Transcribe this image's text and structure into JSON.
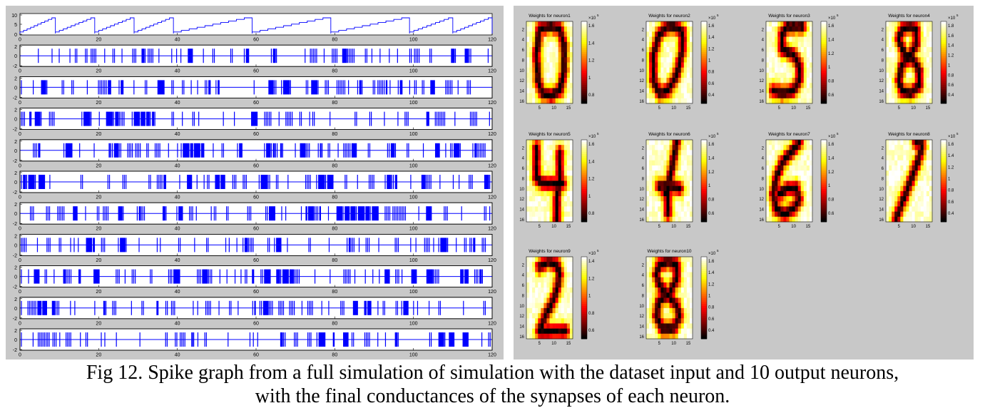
{
  "caption": {
    "line1": "Fig 12. Spike graph from a full simulation of simulation with the dataset input and 10 output neurons,",
    "line2": "with the final conductances of the synapses of each neuron."
  },
  "chart_data": [
    {
      "type": "line",
      "title": "",
      "panels": [
        {
          "name": "input-index",
          "ylim": [
            0,
            10
          ],
          "yticks": [
            "10",
            "5",
            "0"
          ],
          "xlim": [
            0,
            120
          ],
          "xticks": [
            "0",
            "20",
            "40",
            "60",
            "80",
            "100",
            "120"
          ],
          "series": [
            {
              "color": "#0000ff",
              "segments": [
                [
                  0,
                  9
                ],
                [
                  9,
                  19
                ],
                [
                  19,
                  29
                ],
                [
                  29,
                  39
                ],
                [
                  39,
                  59
                ],
                [
                  59,
                  79
                ],
                [
                  79,
                  99
                ],
                [
                  99,
                  110
                ],
                [
                  110,
                  120
                ]
              ]
            }
          ]
        },
        {
          "name": "spike-raster-1",
          "ylim": [
            -2,
            2
          ],
          "yticks": [
            "2",
            "0",
            "-2"
          ]
        },
        {
          "name": "spike-raster-2",
          "ylim": [
            -2,
            2
          ],
          "yticks": [
            "2",
            "0",
            "-2"
          ]
        },
        {
          "name": "spike-raster-3",
          "ylim": [
            -2,
            2
          ],
          "yticks": [
            "2",
            "0",
            "-2"
          ]
        },
        {
          "name": "spike-raster-4",
          "ylim": [
            -2,
            2
          ],
          "yticks": [
            "2",
            "0",
            "-2"
          ]
        },
        {
          "name": "spike-raster-5",
          "ylim": [
            -2,
            2
          ],
          "yticks": [
            "2",
            "0",
            "-2"
          ]
        },
        {
          "name": "spike-raster-6",
          "ylim": [
            -2,
            2
          ],
          "yticks": [
            "2",
            "0",
            "-2"
          ]
        },
        {
          "name": "spike-raster-7",
          "ylim": [
            -2,
            2
          ],
          "yticks": [
            "2",
            "0",
            "-2"
          ]
        },
        {
          "name": "spike-raster-8",
          "ylim": [
            -2,
            2
          ],
          "yticks": [
            "2",
            "0",
            "-2"
          ]
        },
        {
          "name": "spike-raster-9",
          "ylim": [
            -2,
            2
          ],
          "yticks": [
            "2",
            "0",
            "-2"
          ]
        },
        {
          "name": "spike-raster-10",
          "ylim": [
            -2,
            2
          ],
          "yticks": [
            "2",
            "0",
            "-2"
          ]
        }
      ],
      "xticks": [
        "0",
        "20",
        "40",
        "60",
        "80",
        "100",
        "120"
      ],
      "series_color": "#0000ff"
    },
    {
      "type": "heatmap",
      "colormap": "hot",
      "xticks": [
        "5",
        "10",
        "15"
      ],
      "yticks": [
        "2",
        "4",
        "6",
        "8",
        "10",
        "12",
        "14",
        "16"
      ],
      "grid_size": [
        16,
        16
      ],
      "colorbar_exponent_label": "×10",
      "colorbar_exponent": "5",
      "panels": [
        {
          "title": "Weights for neuron1",
          "digit": "0",
          "cbticks": [
            "1.6",
            "1.4",
            "1.2",
            "1",
            "0.8"
          ]
        },
        {
          "title": "Weights for neuron2",
          "digit": "0",
          "cbticks": [
            "1.6",
            "1.4",
            "1.2",
            "1",
            "0.8",
            "0.6",
            "0.4"
          ]
        },
        {
          "title": "Weights for neuron3",
          "digit": "5",
          "cbticks": [
            "1.6",
            "1.4",
            "1.2",
            "1",
            "0.8",
            "0.6"
          ]
        },
        {
          "title": "Weights for neuron4",
          "digit": "8",
          "cbticks": [
            "1.8",
            "1.6",
            "1.4",
            "1.2",
            "1",
            "0.8",
            "0.6",
            "0.4"
          ]
        },
        {
          "title": "Weights for neuron5",
          "digit": "4",
          "cbticks": [
            "1.6",
            "1.4",
            "1.2",
            "1",
            "0.8"
          ]
        },
        {
          "title": "Weights for neuron6",
          "digit": "4",
          "cbticks": [
            "1.6",
            "1.4",
            "1.2",
            "1",
            "0.8",
            "0.6"
          ]
        },
        {
          "title": "Weights for neuron7",
          "digit": "6",
          "cbticks": [
            "1.6",
            "1.4",
            "1.2",
            "1",
            "0.8",
            "0.6"
          ]
        },
        {
          "title": "Weights for neuron8",
          "digit": "7",
          "cbticks": [
            "1.6",
            "1.4",
            "1.2",
            "1",
            "0.8",
            "0.6",
            "0.4"
          ]
        },
        {
          "title": "Weights for neuron9",
          "digit": "2",
          "cbticks": [
            "1.4",
            "1.2",
            "1",
            "0.8",
            "0.6"
          ]
        },
        {
          "title": "Weights for neuron10",
          "digit": "8",
          "cbticks": [
            "1.6",
            "1.4",
            "1.2",
            "1",
            "0.8",
            "0.6",
            "0.4"
          ]
        }
      ]
    }
  ]
}
